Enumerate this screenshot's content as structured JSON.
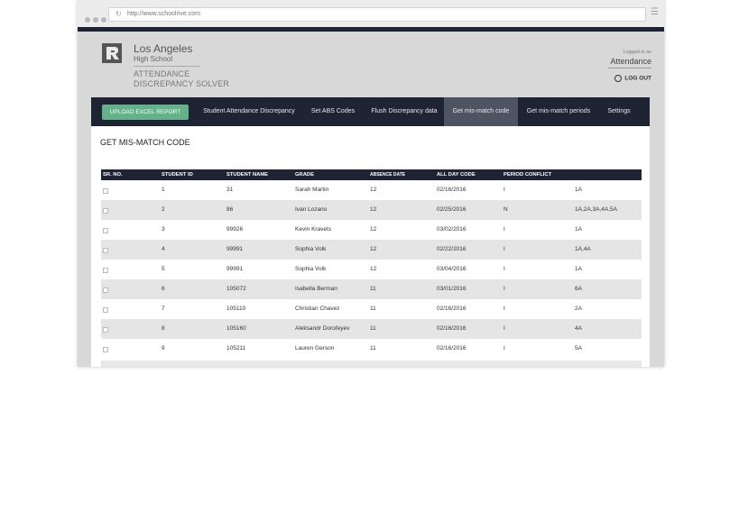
{
  "browser": {
    "url": "http://www.schoolrive.com"
  },
  "header": {
    "school_name": "Los Angeles",
    "school_sub": "High School",
    "app_line1": "ATTENDANCE",
    "app_line2": "DISCREPANCY SOLVER",
    "logged_in_as": "Logged in as",
    "user": "Attendance",
    "logout": "LOG OUT"
  },
  "nav": {
    "upload": "UPLOAD EXCEL REPORT",
    "tabs": [
      {
        "label": "Student Attendance Discrepancy"
      },
      {
        "label": "Set ABS Codes"
      },
      {
        "label": "Flush Discrepancy data"
      },
      {
        "label": "Get mis-match code"
      },
      {
        "label": "Get mis-match periods"
      },
      {
        "label": "Settings"
      }
    ],
    "active_tab": "Get mis-match code"
  },
  "page": {
    "title": "GET MIS-MATCH CODE"
  },
  "table": {
    "columns": [
      "SR. NO.",
      "STUDENT ID",
      "STUDENT NAME",
      "GRADE",
      "ABSENCE DATE",
      "ALL DAY CODE",
      "PERIOD CONFLICT"
    ],
    "rows": [
      {
        "sr": "1",
        "id": "31",
        "name": "Sarah Martin",
        "grade": "12",
        "date": "02/16/2016",
        "code": "I",
        "conflict": "1A"
      },
      {
        "sr": "2",
        "id": "86",
        "name": "Ivan Lozano",
        "grade": "12",
        "date": "02/25/2016",
        "code": "N",
        "conflict": "1A,2A,3A,4A,5A"
      },
      {
        "sr": "3",
        "id": "99926",
        "name": "Kevin Kravets",
        "grade": "12",
        "date": "03/02/2016",
        "code": "I",
        "conflict": "1A"
      },
      {
        "sr": "4",
        "id": "99991",
        "name": "Sophia Volk",
        "grade": "12",
        "date": "02/22/2016",
        "code": "I",
        "conflict": "1A,4A"
      },
      {
        "sr": "5",
        "id": "99991",
        "name": "Sophia Volk",
        "grade": "12",
        "date": "03/04/2016",
        "code": "I",
        "conflict": "1A"
      },
      {
        "sr": "6",
        "id": "105072",
        "name": "Isabella Berman",
        "grade": "11",
        "date": "03/01/2016",
        "code": "I",
        "conflict": "6A"
      },
      {
        "sr": "7",
        "id": "105110",
        "name": "Christian Chavez",
        "grade": "11",
        "date": "02/16/2016",
        "code": "I",
        "conflict": "2A"
      },
      {
        "sr": "8",
        "id": "105160",
        "name": "Aleksandr Dorofeyev",
        "grade": "11",
        "date": "02/16/2016",
        "code": "I",
        "conflict": "4A"
      },
      {
        "sr": "9",
        "id": "105211",
        "name": "Lauren Gerson",
        "grade": "11",
        "date": "02/16/2016",
        "code": "I",
        "conflict": "5A"
      }
    ]
  },
  "colors": {
    "nav_bg": "#1e2433",
    "active_tab_bg": "#4d5564",
    "upload_button": "#63b28a",
    "row_alt": "#e5e5e5",
    "page_bg": "#d8d8d8"
  }
}
